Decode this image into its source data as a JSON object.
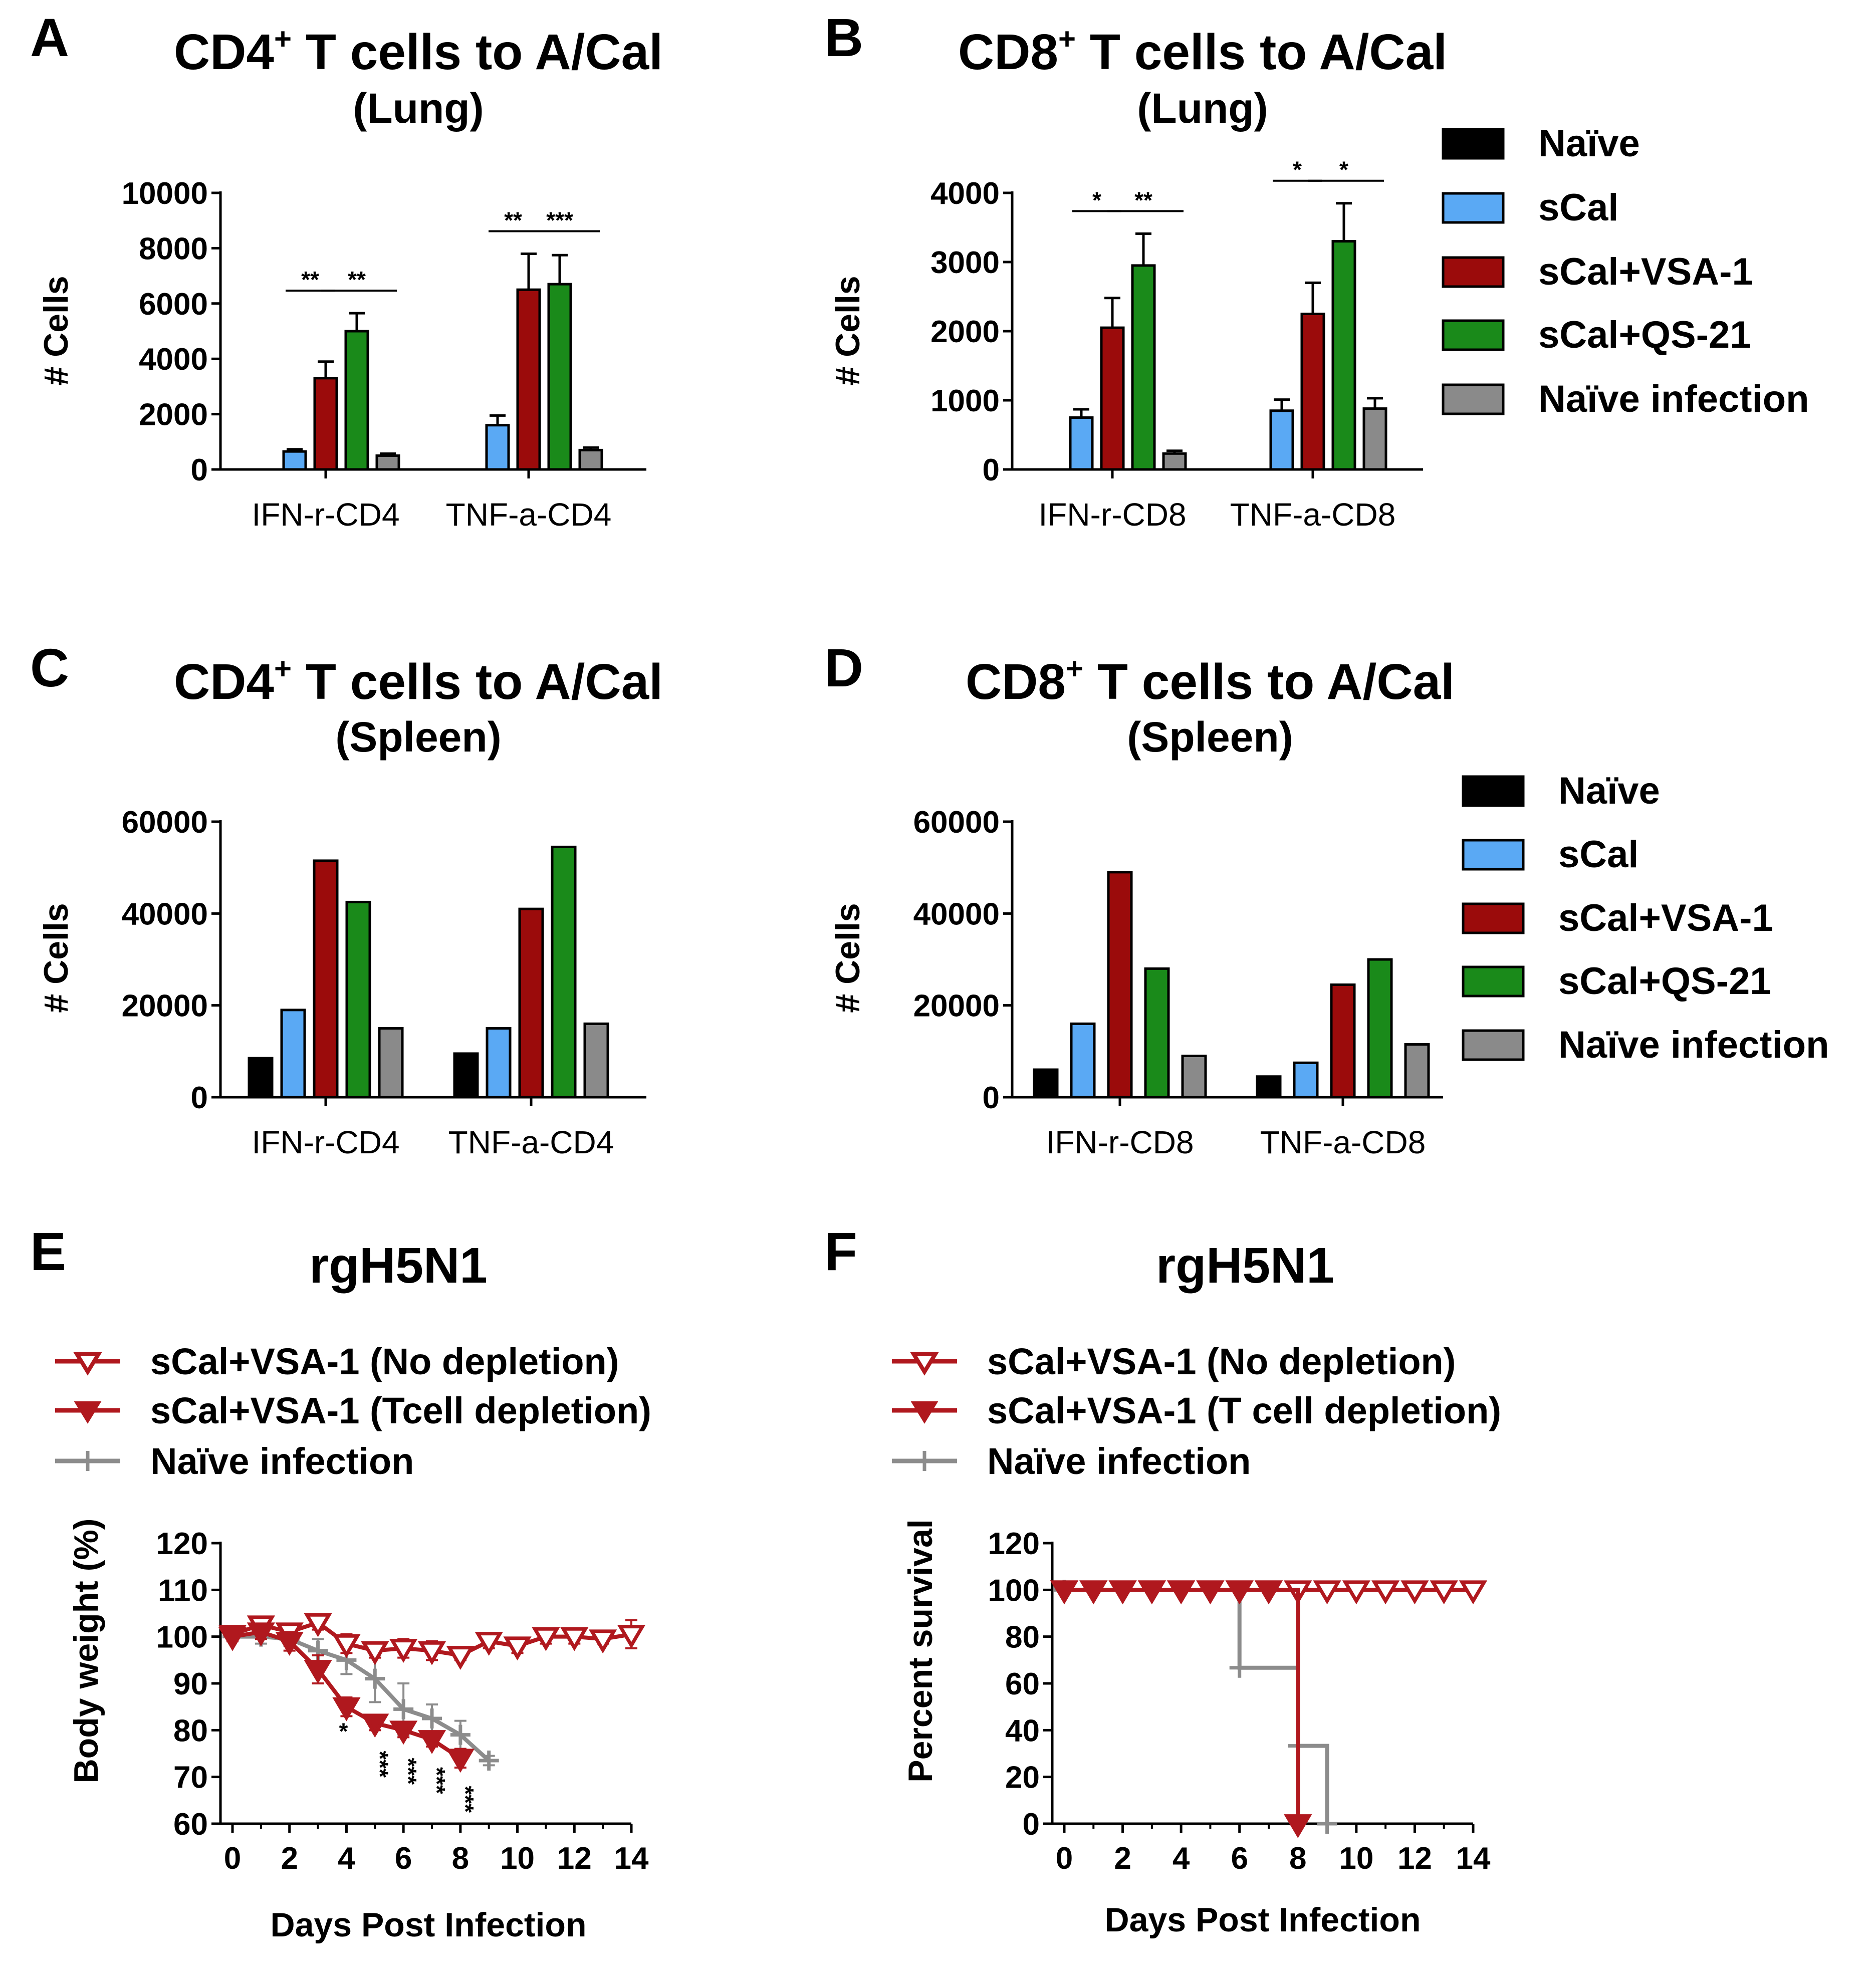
{
  "figure": {
    "panels": {
      "A": {
        "letter": "A",
        "title": "CD4",
        "title_sup": "+",
        "title_rest": " T cells to A/Cal",
        "subtitle": "(Lung)",
        "ylabel": "# Cells"
      },
      "B": {
        "letter": "B",
        "title": "CD8",
        "title_sup": "+",
        "title_rest": " T cells to A/Cal",
        "subtitle": "(Lung)",
        "ylabel": "# Cells"
      },
      "C": {
        "letter": "C",
        "title": "CD4",
        "title_sup": "+",
        "title_rest": " T cells to A/Cal",
        "subtitle": "(Spleen)",
        "ylabel": "# Cells"
      },
      "D": {
        "letter": "D",
        "title": "CD8",
        "title_sup": "+",
        "title_rest": " T cells to A/Cal",
        "subtitle": "(Spleen)",
        "ylabel": "# Cells"
      },
      "E": {
        "letter": "E",
        "title": "rgH5N1",
        "ylabel": "Body weight (%)",
        "xlabel": "Days Post Infection"
      },
      "F": {
        "letter": "F",
        "title": "rgH5N1",
        "ylabel": "Percent survival",
        "xlabel": "Days Post Infection"
      }
    },
    "bar_legend": {
      "groups": [
        "Naïve",
        "sCal",
        "sCal+VSA-1",
        "sCal+QS-21",
        "Naïve infection"
      ],
      "colors": [
        "#000000",
        "#5aa9f4",
        "#9b0b0b",
        "#1a8a1a",
        "#8a8a8a"
      ]
    },
    "line_legend_E": [
      "sCal+VSA-1 (No depletion)",
      "sCal+VSA-1 (Tcell depletion)",
      "Naïve infection"
    ],
    "line_legend_F": [
      "sCal+VSA-1 (No depletion)",
      "sCal+VSA-1 (T cell depletion)",
      "Naïve infection"
    ]
  },
  "chart_data": [
    {
      "panel": "A",
      "type": "bar",
      "categories": [
        "IFN-r-CD4",
        "TNF-a-CD4"
      ],
      "ylim": [
        0,
        10000
      ],
      "yticks": [
        0,
        2000,
        4000,
        6000,
        8000,
        10000
      ],
      "series": [
        {
          "name": "Naïve",
          "values": [
            0,
            0
          ],
          "errors": [
            0,
            0
          ]
        },
        {
          "name": "sCal",
          "values": [
            650,
            1600
          ],
          "errors": [
            80,
            350
          ]
        },
        {
          "name": "sCal+VSA-1",
          "values": [
            3300,
            6500
          ],
          "errors": [
            600,
            1300
          ]
        },
        {
          "name": "sCal+QS-21",
          "values": [
            5000,
            6700
          ],
          "errors": [
            650,
            1050
          ]
        },
        {
          "name": "Naïve infection",
          "values": [
            500,
            700
          ],
          "errors": [
            70,
            90
          ]
        }
      ],
      "significance": [
        {
          "category": 0,
          "from": 1,
          "to": 2,
          "label": "**"
        },
        {
          "category": 0,
          "from": 2,
          "to": 4,
          "label": "**"
        },
        {
          "category": 1,
          "from": 1,
          "to": 2,
          "label": "**"
        },
        {
          "category": 1,
          "from": 2,
          "to": 4,
          "label": "***"
        }
      ]
    },
    {
      "panel": "B",
      "type": "bar",
      "categories": [
        "IFN-r-CD8",
        "TNF-a-CD8"
      ],
      "ylim": [
        0,
        4000
      ],
      "yticks": [
        0,
        1000,
        2000,
        3000,
        4000
      ],
      "series": [
        {
          "name": "Naïve",
          "values": [
            0,
            0
          ],
          "errors": [
            0,
            0
          ]
        },
        {
          "name": "sCal",
          "values": [
            750,
            850
          ],
          "errors": [
            120,
            160
          ]
        },
        {
          "name": "sCal+VSA-1",
          "values": [
            2050,
            2250
          ],
          "errors": [
            430,
            450
          ]
        },
        {
          "name": "sCal+QS-21",
          "values": [
            2950,
            3300
          ],
          "errors": [
            460,
            550
          ]
        },
        {
          "name": "Naïve infection",
          "values": [
            230,
            880
          ],
          "errors": [
            40,
            150
          ]
        }
      ],
      "significance": [
        {
          "category": 0,
          "from": 1,
          "to": 2,
          "label": "*"
        },
        {
          "category": 0,
          "from": 2,
          "to": 4,
          "label": "**"
        },
        {
          "category": 1,
          "from": 1,
          "to": 2,
          "label": "*"
        },
        {
          "category": 1,
          "from": 2,
          "to": 4,
          "label": "*"
        }
      ]
    },
    {
      "panel": "C",
      "type": "bar",
      "categories": [
        "IFN-r-CD4",
        "TNF-a-CD4"
      ],
      "ylim": [
        0,
        60000
      ],
      "yticks": [
        0,
        20000,
        40000,
        60000
      ],
      "series": [
        {
          "name": "Naïve",
          "values": [
            8500,
            9500
          ]
        },
        {
          "name": "sCal",
          "values": [
            19000,
            15000
          ]
        },
        {
          "name": "sCal+VSA-1",
          "values": [
            51500,
            41000
          ]
        },
        {
          "name": "sCal+QS-21",
          "values": [
            42500,
            54500
          ]
        },
        {
          "name": "Naïve infection",
          "values": [
            15000,
            16000
          ]
        }
      ]
    },
    {
      "panel": "D",
      "type": "bar",
      "categories": [
        "IFN-r-CD8",
        "TNF-a-CD8"
      ],
      "ylim": [
        0,
        60000
      ],
      "yticks": [
        0,
        20000,
        40000,
        60000
      ],
      "series": [
        {
          "name": "Naïve",
          "values": [
            6000,
            4500
          ]
        },
        {
          "name": "sCal",
          "values": [
            16000,
            7500
          ]
        },
        {
          "name": "sCal+VSA-1",
          "values": [
            49000,
            24500
          ]
        },
        {
          "name": "sCal+QS-21",
          "values": [
            28000,
            30000
          ]
        },
        {
          "name": "Naïve infection",
          "values": [
            9000,
            11500
          ]
        }
      ]
    },
    {
      "panel": "E",
      "type": "line",
      "xlabel": "Days Post Infection",
      "ylabel": "Body weight (%)",
      "xlim": [
        0,
        14
      ],
      "ylim": [
        60,
        120
      ],
      "xticks": [
        0,
        2,
        4,
        6,
        8,
        10,
        12,
        14
      ],
      "yticks": [
        60,
        70,
        80,
        90,
        100,
        110,
        120
      ],
      "series": [
        {
          "name": "sCal+VSA-1 (No depletion)",
          "color": "#b0181e",
          "marker": "open-triangle-down",
          "x": [
            0,
            1,
            2,
            3,
            4,
            5,
            6,
            7,
            8,
            9,
            10,
            11,
            12,
            13,
            14
          ],
          "y": [
            100.5,
            102.5,
            101,
            103,
            98.5,
            97,
            97.5,
            97,
            96,
            99,
            98,
            100,
            100,
            99.5,
            100.5
          ],
          "errors": [
            1.5,
            1.5,
            1.5,
            1.5,
            2,
            1.5,
            2,
            2,
            1,
            1.5,
            1.5,
            1.5,
            1.5,
            1,
            3
          ]
        },
        {
          "name": "sCal+VSA-1 (Tcell depletion)",
          "color": "#b0181e",
          "marker": "filled-triangle-down",
          "x": [
            0,
            1,
            2,
            3,
            4,
            5,
            6,
            7,
            8
          ],
          "y": [
            100,
            101,
            99,
            93,
            85,
            81.5,
            80,
            78,
            74
          ],
          "errors": [
            1,
            1.5,
            2,
            3,
            2,
            1.5,
            1.5,
            1.5,
            2
          ]
        },
        {
          "name": "Naïve infection",
          "color": "#8c8c8c",
          "marker": "plus",
          "x": [
            0,
            1,
            2,
            3,
            4,
            5,
            6,
            7,
            8,
            9
          ],
          "y": [
            100,
            100,
            99.5,
            97,
            95,
            91,
            84.5,
            82.5,
            79,
            73.5
          ],
          "errors": [
            1,
            1.5,
            1.5,
            2.5,
            3,
            5,
            5.5,
            3,
            3,
            1
          ]
        }
      ],
      "annotations": [
        {
          "x": 4,
          "label": "*"
        },
        {
          "x": 5,
          "label": "***"
        },
        {
          "x": 6,
          "label": "***"
        },
        {
          "x": 7,
          "label": "***"
        },
        {
          "x": 8,
          "label": "***"
        }
      ]
    },
    {
      "panel": "F",
      "type": "line",
      "xlabel": "Days Post Infection",
      "ylabel": "Percent survival",
      "xlim": [
        0,
        14
      ],
      "ylim": [
        0,
        120
      ],
      "xticks": [
        0,
        2,
        4,
        6,
        8,
        10,
        12,
        14
      ],
      "yticks": [
        0,
        20,
        40,
        60,
        80,
        100,
        120
      ],
      "series": [
        {
          "name": "sCal+VSA-1 (No depletion)",
          "color": "#b0181e",
          "marker": "open-triangle-down",
          "step": true,
          "x": [
            0,
            1,
            2,
            3,
            4,
            5,
            6,
            7,
            8,
            9,
            10,
            11,
            12,
            13,
            14
          ],
          "y": [
            100,
            100,
            100,
            100,
            100,
            100,
            100,
            100,
            100,
            100,
            100,
            100,
            100,
            100,
            100
          ]
        },
        {
          "name": "sCal+VSA-1 (T cell depletion)",
          "color": "#b0181e",
          "marker": "filled-triangle-down",
          "step": true,
          "x": [
            0,
            1,
            2,
            3,
            4,
            5,
            6,
            7,
            8
          ],
          "y": [
            100,
            100,
            100,
            100,
            100,
            100,
            100,
            100,
            0
          ]
        },
        {
          "name": "Naïve infection",
          "color": "#8c8c8c",
          "marker": "plus",
          "step": true,
          "x": [
            0,
            6,
            8,
            9
          ],
          "y": [
            100,
            66.7,
            33.3,
            0
          ]
        }
      ]
    }
  ]
}
